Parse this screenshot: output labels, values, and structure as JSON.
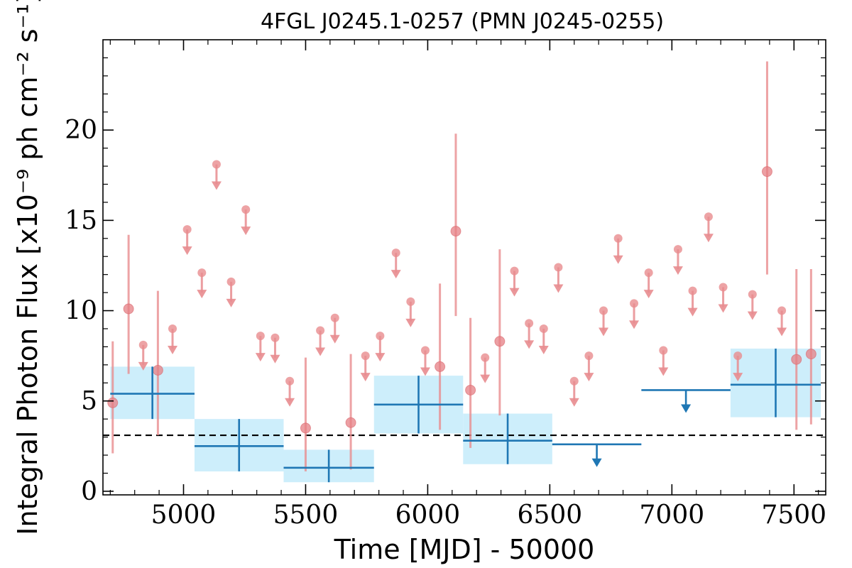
{
  "chart_data": {
    "type": "scatter",
    "title": "4FGL J0245.1-0257 (PMN J0245-0255)",
    "xlabel": "Time [MJD] - 50000",
    "ylabel": "Integral Photon Flux [x10⁻⁹ ph cm⁻² s⁻¹]",
    "xlim": [
      4670,
      7630
    ],
    "ylim": [
      -0.2,
      25.0
    ],
    "xticks": [
      5000,
      5500,
      6000,
      6500,
      7000,
      7500
    ],
    "yticks": [
      0,
      5,
      10,
      15,
      20
    ],
    "grid": false,
    "reference_line": {
      "y": 3.1,
      "style": "dashed",
      "color": "#000000"
    },
    "colors": {
      "short_bins": "#e88c8f",
      "long_bins": "#1f77b4",
      "long_bins_fill": "#cdeefb"
    },
    "series": [
      {
        "kind": "detections",
        "points": [
          {
            "x": 4710,
            "y": 4.9,
            "ylo": 2.1,
            "yhi": 8.3
          },
          {
            "x": 4775,
            "y": 10.1,
            "ylo": 6.5,
            "yhi": 14.2
          },
          {
            "x": 4895,
            "y": 6.7,
            "ylo": 3.1,
            "yhi": 11.1
          },
          {
            "x": 5500,
            "y": 3.5,
            "ylo": 1.1,
            "yhi": 7.4
          },
          {
            "x": 5685,
            "y": 3.8,
            "ylo": 1.2,
            "yhi": 7.6
          },
          {
            "x": 6050,
            "y": 6.9,
            "ylo": 3.4,
            "yhi": 11.5
          },
          {
            "x": 6115,
            "y": 14.4,
            "ylo": 9.7,
            "yhi": 19.8
          },
          {
            "x": 6175,
            "y": 5.6,
            "ylo": 2.4,
            "yhi": 9.6
          },
          {
            "x": 6295,
            "y": 8.3,
            "ylo": 4.2,
            "yhi": 13.4
          },
          {
            "x": 7390,
            "y": 17.7,
            "ylo": 12.0,
            "yhi": 23.8
          },
          {
            "x": 7510,
            "y": 7.3,
            "ylo": 3.4,
            "yhi": 12.3
          },
          {
            "x": 7570,
            "y": 7.6,
            "ylo": 3.7,
            "yhi": 12.3
          }
        ]
      },
      {
        "kind": "upper_limits",
        "points": [
          {
            "x": 4835,
            "y": 8.1
          },
          {
            "x": 4955,
            "y": 9.0
          },
          {
            "x": 5015,
            "y": 14.5
          },
          {
            "x": 5075,
            "y": 12.1
          },
          {
            "x": 5135,
            "y": 18.1
          },
          {
            "x": 5195,
            "y": 11.6
          },
          {
            "x": 5255,
            "y": 15.6
          },
          {
            "x": 5315,
            "y": 8.6
          },
          {
            "x": 5375,
            "y": 8.5
          },
          {
            "x": 5435,
            "y": 6.1
          },
          {
            "x": 5560,
            "y": 8.9
          },
          {
            "x": 5620,
            "y": 9.6
          },
          {
            "x": 5745,
            "y": 7.5
          },
          {
            "x": 5805,
            "y": 8.6
          },
          {
            "x": 5870,
            "y": 13.2
          },
          {
            "x": 5930,
            "y": 10.5
          },
          {
            "x": 5990,
            "y": 7.8
          },
          {
            "x": 6235,
            "y": 7.4
          },
          {
            "x": 6355,
            "y": 12.2
          },
          {
            "x": 6415,
            "y": 9.3
          },
          {
            "x": 6475,
            "y": 9.0
          },
          {
            "x": 6535,
            "y": 12.4
          },
          {
            "x": 6600,
            "y": 6.1
          },
          {
            "x": 6660,
            "y": 7.5
          },
          {
            "x": 6720,
            "y": 10.0
          },
          {
            "x": 6780,
            "y": 14.0
          },
          {
            "x": 6845,
            "y": 10.4
          },
          {
            "x": 6905,
            "y": 12.1
          },
          {
            "x": 6965,
            "y": 7.8
          },
          {
            "x": 7025,
            "y": 13.4
          },
          {
            "x": 7085,
            "y": 11.1
          },
          {
            "x": 7150,
            "y": 15.2
          },
          {
            "x": 7210,
            "y": 11.3
          },
          {
            "x": 7330,
            "y": 10.9
          },
          {
            "x": 7270,
            "y": 7.5
          },
          {
            "x": 7450,
            "y": 10.0
          }
        ]
      },
      {
        "kind": "long_bins",
        "bins": [
          {
            "x0": 4700,
            "x1": 5045,
            "y": 5.4,
            "ylo": 4.0,
            "yhi": 6.9,
            "ul": false
          },
          {
            "x0": 5045,
            "x1": 5410,
            "y": 2.5,
            "ylo": 1.1,
            "yhi": 4.0,
            "ul": false
          },
          {
            "x0": 5410,
            "x1": 5780,
            "y": 1.3,
            "ylo": 0.5,
            "yhi": 2.3,
            "ul": false
          },
          {
            "x0": 5780,
            "x1": 6145,
            "y": 4.8,
            "ylo": 3.2,
            "yhi": 6.4,
            "ul": false
          },
          {
            "x0": 6145,
            "x1": 6510,
            "y": 2.8,
            "ylo": 1.5,
            "yhi": 4.3,
            "ul": false
          },
          {
            "x0": 6510,
            "x1": 6875,
            "y": 2.6,
            "ul": true
          },
          {
            "x0": 6875,
            "x1": 7240,
            "y": 5.6,
            "ul": true
          },
          {
            "x0": 7240,
            "x1": 7610,
            "y": 5.9,
            "ylo": 4.1,
            "yhi": 7.9,
            "ul": false
          }
        ]
      }
    ]
  }
}
